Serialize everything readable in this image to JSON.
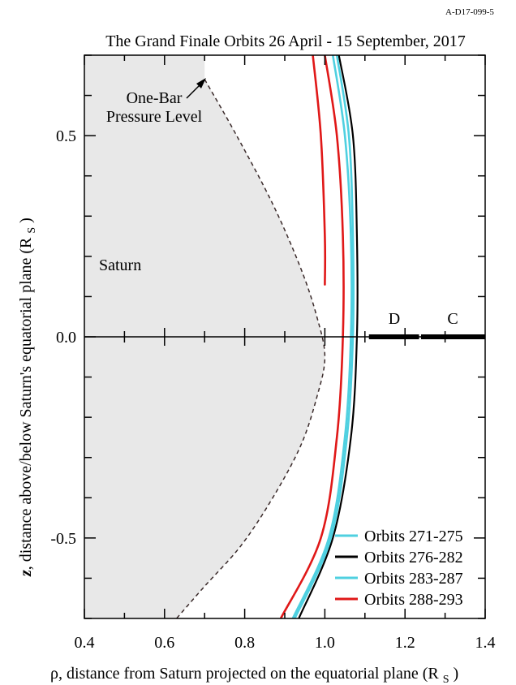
{
  "figure_id": "A-D17-099-5",
  "chart_data": {
    "type": "line",
    "title": "The Grand Finale Orbits  26 April - 15 September, 2017",
    "xlabel": "ρ, distance from Saturn projected on the equatorial plane (R_S)",
    "ylabel": "z, distance above/below Saturn's equatorial plane (R_S)",
    "xlim": [
      0.4,
      1.4
    ],
    "ylim": [
      -0.7,
      0.7
    ],
    "x_ticks": [
      0.4,
      0.6,
      0.8,
      1.0,
      1.2,
      1.4
    ],
    "x_tick_labels": [
      "0.4",
      "0.6",
      "0.8",
      "1.0",
      "1.2",
      "1.4"
    ],
    "y_ticks": [
      0.5,
      0.0,
      -0.5
    ],
    "y_tick_labels": [
      "0.5",
      "0.0",
      "-0.5"
    ],
    "annotations": [
      {
        "id": "one-bar-label",
        "text_lines": [
          "One-Bar",
          "Pressure Level"
        ]
      },
      {
        "id": "saturn-label",
        "text": "Saturn"
      },
      {
        "id": "ring-d",
        "text": "D"
      },
      {
        "id": "ring-c",
        "text": "C"
      }
    ],
    "one_bar_level": {
      "style": "dashed",
      "color": "#3a2a2a",
      "fill": "#e8e8e8",
      "points": [
        [
          0.7,
          0.64
        ],
        [
          0.78,
          0.5
        ],
        [
          0.87,
          0.33
        ],
        [
          0.94,
          0.17
        ],
        [
          0.98,
          0.05
        ],
        [
          1.0,
          -0.05
        ],
        [
          0.98,
          -0.15
        ],
        [
          0.94,
          -0.27
        ],
        [
          0.87,
          -0.4
        ],
        [
          0.79,
          -0.52
        ],
        [
          0.7,
          -0.62
        ],
        [
          0.63,
          -0.7
        ]
      ]
    },
    "rings": [
      {
        "name": "D",
        "x_range": [
          1.11,
          1.235
        ]
      },
      {
        "name": "C",
        "x_range": [
          1.24,
          1.4
        ]
      }
    ],
    "series": [
      {
        "name": "Orbits 271-275",
        "color": "#4fd0e0",
        "points": [
          [
            1.02,
            0.7
          ],
          [
            1.05,
            0.5
          ],
          [
            1.065,
            0.25
          ],
          [
            1.065,
            0.0
          ],
          [
            1.05,
            -0.25
          ],
          [
            1.01,
            -0.5
          ],
          [
            0.92,
            -0.7
          ]
        ]
      },
      {
        "name": "Orbits 276-282",
        "color": "#000000",
        "points": [
          [
            1.035,
            0.7
          ],
          [
            1.07,
            0.5
          ],
          [
            1.08,
            0.25
          ],
          [
            1.08,
            0.0
          ],
          [
            1.065,
            -0.25
          ],
          [
            1.02,
            -0.5
          ],
          [
            0.935,
            -0.7
          ]
        ]
      },
      {
        "name": "Orbits 283-287",
        "color": "#4fd0e0",
        "points": [
          [
            1.03,
            0.7
          ],
          [
            1.06,
            0.5
          ],
          [
            1.07,
            0.25
          ],
          [
            1.07,
            0.0
          ],
          [
            1.055,
            -0.25
          ],
          [
            1.015,
            -0.5
          ],
          [
            0.925,
            -0.7
          ]
        ]
      },
      {
        "name": "Orbits 288-293",
        "color": "#e01818",
        "segments": [
          [
            [
              1.0,
              0.7
            ],
            [
              1.03,
              0.5
            ],
            [
              1.045,
              0.25
            ],
            [
              1.045,
              0.0
            ],
            [
              1.03,
              -0.25
            ],
            [
              0.99,
              -0.5
            ],
            [
              0.89,
              -0.7
            ]
          ],
          [
            [
              0.97,
              0.7
            ],
            [
              0.99,
              0.5
            ],
            [
              1.0,
              0.25
            ],
            [
              1.0,
              0.13
            ]
          ]
        ]
      }
    ],
    "legend": {
      "placement": "bottom-right"
    }
  }
}
